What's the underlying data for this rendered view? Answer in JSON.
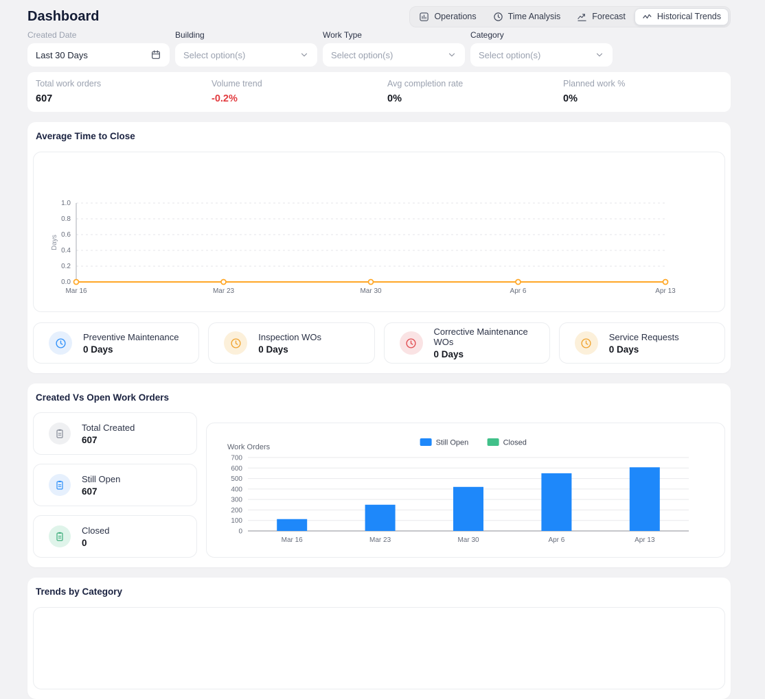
{
  "page": {
    "title": "Dashboard"
  },
  "tabs": [
    {
      "label": "Operations",
      "icon": "operations-icon",
      "active": false
    },
    {
      "label": "Time Analysis",
      "icon": "clock-icon",
      "active": false
    },
    {
      "label": "Forecast",
      "icon": "forecast-icon",
      "active": false
    },
    {
      "label": "Historical Trends",
      "icon": "historical-trends-icon",
      "active": true
    }
  ],
  "filters": [
    {
      "label": "Created Date",
      "value": "Last 30 Days",
      "icon": "calendar-icon",
      "muted_label": true
    },
    {
      "label": "Building",
      "placeholder": "Select option(s)",
      "icon": "chevron-down-icon"
    },
    {
      "label": "Work Type",
      "placeholder": "Select option(s)",
      "icon": "chevron-down-icon"
    },
    {
      "label": "Category",
      "placeholder": "Select option(s)",
      "icon": "chevron-down-icon"
    }
  ],
  "stats": [
    {
      "label": "Total work orders",
      "value": "607",
      "negative": false
    },
    {
      "label": "Volume trend",
      "value": "-0.2%",
      "negative": true
    },
    {
      "label": "Avg completion rate",
      "value": "0%",
      "negative": false
    },
    {
      "label": "Planned work %",
      "value": "0%",
      "negative": false
    }
  ],
  "sections": {
    "avg_time": {
      "title": "Average Time to Close",
      "cards": [
        {
          "label": "Preventive Maintenance",
          "value": "0 Days",
          "icon": "clock-icon",
          "color": "#2e90fa",
          "bg": "#e6f0fd"
        },
        {
          "label": "Inspection WOs",
          "value": "0 Days",
          "icon": "clock-icon",
          "color": "#f0a32f",
          "bg": "#fcf0da"
        },
        {
          "label": "Corrective Maintenance WOs",
          "value": "0 Days",
          "icon": "clock-icon",
          "color": "#e04b50",
          "bg": "#fae3e4"
        },
        {
          "label": "Service Requests",
          "value": "0 Days",
          "icon": "clock-icon",
          "color": "#f0a32f",
          "bg": "#fcf0da"
        }
      ]
    },
    "created_open": {
      "title": "Created Vs Open Work Orders",
      "cards": [
        {
          "label": "Total Created",
          "value": "607",
          "icon": "clipboard-icon",
          "color": "#868c98",
          "bg": "#eff0f2"
        },
        {
          "label": "Still Open",
          "value": "607",
          "icon": "clipboard-icon",
          "color": "#2e90fa",
          "bg": "#e6f0fd"
        },
        {
          "label": "Closed",
          "value": "0",
          "icon": "clipboard-icon",
          "color": "#3fae7c",
          "bg": "#dff4ea"
        }
      ]
    },
    "trends_category": {
      "title": "Trends by Category"
    }
  },
  "chart_data": [
    {
      "type": "line",
      "title": "Average Time to Close",
      "ylabel": "Days",
      "x": [
        "Mar 16",
        "Mar 23",
        "Mar 30",
        "Apr 6",
        "Apr 13"
      ],
      "series": [
        {
          "name": "Average Time to Close",
          "values": [
            0,
            0,
            0,
            0,
            0
          ],
          "color": "#ffa726"
        }
      ],
      "ylim": [
        0,
        1
      ],
      "yticks": [
        "0.0",
        "0.2",
        "0.4",
        "0.6",
        "0.8",
        "1.0"
      ],
      "grid": "dashed-horizontal",
      "legend_position": "none"
    },
    {
      "type": "bar",
      "title": "Created Vs Open Work Orders",
      "ylabel": "Work Orders",
      "categories": [
        "Mar 16",
        "Mar 23",
        "Mar 30",
        "Apr 6",
        "Apr 13"
      ],
      "series": [
        {
          "name": "Still Open",
          "values": [
            113,
            250,
            420,
            550,
            607
          ],
          "color": "#1e88fa"
        },
        {
          "name": "Closed",
          "values": [
            0,
            0,
            0,
            0,
            0
          ],
          "color": "#41c089"
        }
      ],
      "ylim": [
        0,
        700
      ],
      "ytick_step": 100,
      "grid": "solid-horizontal",
      "legend_position": "top-center"
    }
  ]
}
